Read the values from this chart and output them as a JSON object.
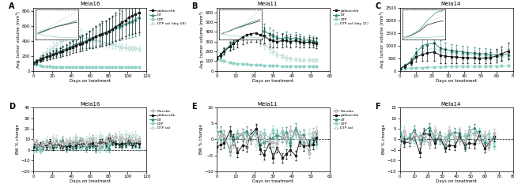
{
  "panels": {
    "A": {
      "title": "Mela16",
      "xlim": [
        0,
        120
      ],
      "ylim": [
        0,
        850
      ],
      "xticks": [
        0,
        20,
        40,
        60,
        80,
        100,
        120
      ],
      "yticks": [
        0,
        200,
        400,
        600,
        800
      ],
      "xlabel": "Days on treatment",
      "ylabel": "Avg. tumor volume (mm³)",
      "legend_labels": [
        "palbociclib",
        "DT",
        "DTP",
        "DTP sal (day 58)"
      ]
    },
    "B": {
      "title": "Mela11",
      "xlim": [
        0,
        60
      ],
      "ylim": [
        0,
        650
      ],
      "xticks": [
        0,
        10,
        20,
        30,
        40,
        50,
        60
      ],
      "yticks": [
        0,
        100,
        200,
        300,
        400,
        500,
        600
      ],
      "xlabel": "Days on treatment",
      "ylabel": "Avg. tumor volume (mm³)",
      "legend_labels": [
        "palbociclib",
        "DT",
        "DTP",
        "DTP sal (day 21)"
      ]
    },
    "C": {
      "title": "Mela14",
      "xlim": [
        0,
        70
      ],
      "ylim": [
        0,
        2500
      ],
      "xticks": [
        0,
        10,
        20,
        30,
        40,
        50,
        60,
        70
      ],
      "yticks": [
        0,
        500,
        1000,
        1500,
        2000,
        2500
      ],
      "xlabel": "Days on treatment",
      "ylabel": "Avg. tumor volume (mm³)",
      "legend_labels": [
        "palbociclib",
        "DT",
        "DTP",
        "DTP sal (day 21)"
      ]
    },
    "D": {
      "title": "Mela16",
      "xlim": [
        0,
        120
      ],
      "ylim": [
        -20,
        40
      ],
      "xticks": [
        0,
        20,
        40,
        60,
        80,
        100,
        120
      ],
      "yticks": [
        -20,
        -10,
        0,
        10,
        20,
        30,
        40
      ],
      "xlabel": "Days on treatment",
      "ylabel": "BW % change",
      "legend_labels": [
        "Placebo",
        "palbociclib",
        "DT",
        "DTP",
        "DTP sal"
      ]
    },
    "E": {
      "title": "Mela11",
      "xlim": [
        0,
        60
      ],
      "ylim": [
        -10,
        10
      ],
      "xticks": [
        0,
        10,
        20,
        30,
        40,
        50,
        60
      ],
      "yticks": [
        -10,
        -5,
        0,
        5,
        10
      ],
      "xlabel": "Days on treatment",
      "ylabel": "BW % change",
      "legend_labels": [
        "Placebo",
        "palbociclib",
        "DT",
        "DTP",
        "DTP sal"
      ]
    },
    "F": {
      "title": "Mela14",
      "xlim": [
        0,
        80
      ],
      "ylim": [
        -15,
        15
      ],
      "xticks": [
        0,
        10,
        20,
        30,
        40,
        50,
        60,
        70,
        80
      ],
      "yticks": [
        -15,
        -10,
        -5,
        0,
        5,
        10,
        15
      ],
      "xlabel": "Days on treatment",
      "ylabel": "BW % change",
      "legend_labels": [
        "Placebo",
        "palbociclib",
        "DT",
        "DTP",
        "DTP sal"
      ]
    }
  },
  "colors": {
    "palbociclib": "#1a1a1a",
    "DT": "#3a8c7e",
    "DTP": "#8fd0c4",
    "DTP_sal": "#c0deda",
    "Placebo": "#b0b0b0"
  },
  "bg_color": "#ffffff"
}
